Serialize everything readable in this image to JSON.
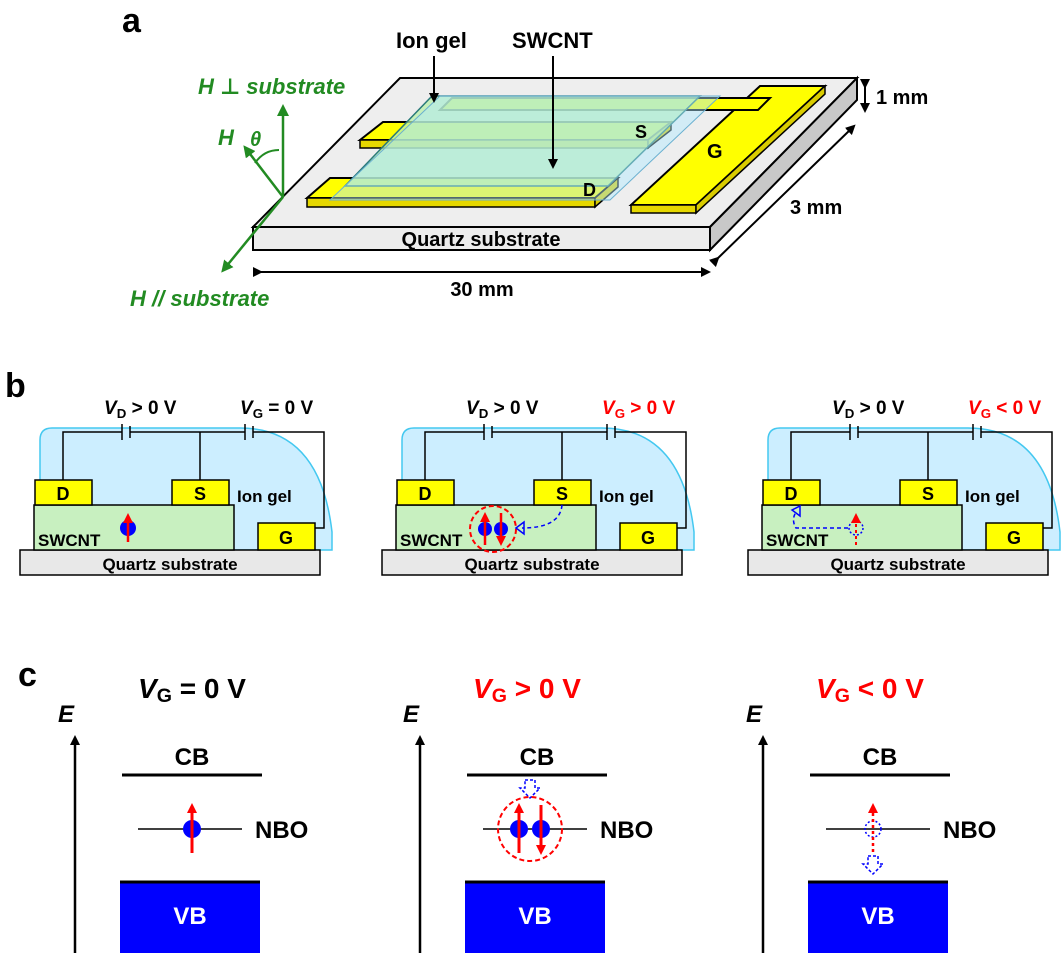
{
  "panels": {
    "a": "a",
    "b": "b",
    "c": "c"
  },
  "device": {
    "ion_gel_label": "Ion gel",
    "swcnt_label": "SWCNT",
    "s_label": "S",
    "g_label": "G",
    "d_label": "D",
    "substrate_label": "Quartz substrate",
    "thickness": "1 mm",
    "width": "3 mm",
    "length": "30 mm",
    "field_perp": "H ⊥ substrate",
    "field_par": "H // substrate",
    "field_h": "H",
    "theta": "θ"
  },
  "schematic": {
    "d": "D",
    "s": "S",
    "g": "G",
    "ion_gel": "Ion gel",
    "swcnt": "SWCNT",
    "substrate": "Quartz substrate",
    "vd": "V",
    "vd_sub": "D",
    "vd_val": "> 0 V",
    "vg": "V",
    "vg_sub": "G",
    "panels": [
      {
        "vg_val": "= 0 V",
        "vg_color": "#000000"
      },
      {
        "vg_val": "> 0 V",
        "vg_color": "#ff0000"
      },
      {
        "vg_val": "< 0 V",
        "vg_color": "#ff0000"
      }
    ]
  },
  "bands": {
    "e_axis": "E",
    "cb": "CB",
    "vb": "VB",
    "nbo": "NBO",
    "vg": "V",
    "vg_sub": "G",
    "panels": [
      {
        "vg_val": "= 0 V",
        "color": "#000000"
      },
      {
        "vg_val": "> 0 V",
        "color": "#ff0000"
      },
      {
        "vg_val": "< 0 V",
        "color": "#ff0000"
      }
    ]
  },
  "colors": {
    "green_label": "#228b22",
    "electrode": "#ffff00",
    "ion_gel": "#cceeff",
    "swcnt": "#c8f0c0",
    "vb_fill": "#0000ff",
    "spin": "#ff0000",
    "carrier": "#0000ff"
  }
}
